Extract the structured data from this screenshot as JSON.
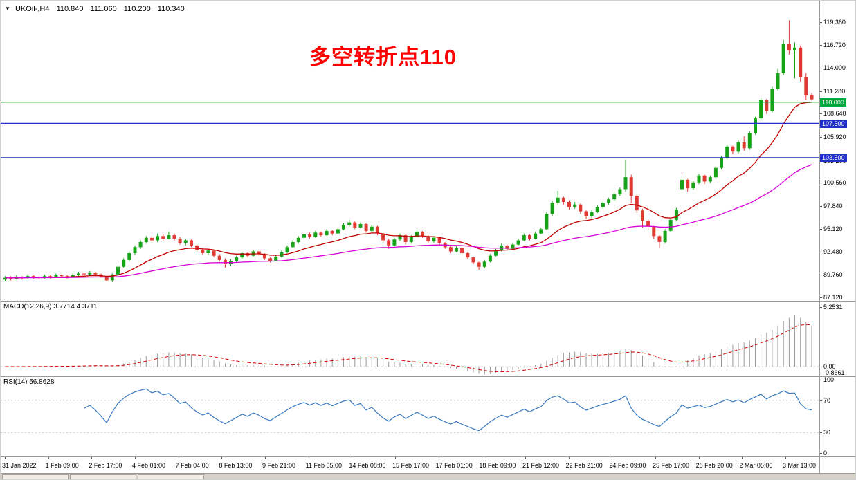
{
  "header": {
    "marker": "▼",
    "symbol_timeframe": "UKOil-,H4",
    "ohlc": {
      "open": "110.840",
      "high": "111.060",
      "low": "110.200",
      "close": "110.340"
    }
  },
  "annotation": {
    "text": "多空转折点110",
    "color": "#ff0000"
  },
  "hlines": [
    {
      "price": 110.0,
      "label": "110.000",
      "color": "#00a63e"
    },
    {
      "price": 107.5,
      "label": "107.500",
      "color": "#2230c8"
    },
    {
      "price": 103.5,
      "label": "103.500",
      "color": "#2230c8"
    }
  ],
  "macd_panel": {
    "label": "MACD(12,26,9) 3.7714 4.3711",
    "params": "12,26,9",
    "macd_value": "3.7714",
    "signal_value": "4.3711",
    "axis_labels": [
      "5.2531",
      "0.00",
      "-0.8661"
    ]
  },
  "rsi_panel": {
    "label": "RSI(14) 56.8628",
    "value": "56.8628",
    "axis_labels": [
      "100",
      "70",
      "30",
      "0"
    ],
    "levels": [
      70,
      30
    ]
  },
  "chart_data": {
    "type": "candlestick",
    "symbol": "UKOil-",
    "timeframe": "H4",
    "title": "UKOil-,H4 with MACD(12,26,9) and RSI(14)",
    "y_ticks": [
      "119.360",
      "116.720",
      "114.000",
      "111.280",
      "108.640",
      "105.920",
      "103.200",
      "100.560",
      "97.840",
      "95.120",
      "92.480",
      "89.760",
      "87.120"
    ],
    "y_range": [
      86.7,
      121.9
    ],
    "x_labels": [
      "31 Jan 2022",
      "1 Feb 09:00",
      "2 Feb 17:00",
      "4 Feb 01:00",
      "7 Feb 04:00",
      "8 Feb 13:00",
      "9 Feb 21:00",
      "11 Feb 05:00",
      "14 Feb 08:00",
      "15 Feb 17:00",
      "17 Feb 01:00",
      "18 Feb 09:00",
      "21 Feb 12:00",
      "22 Feb 21:00",
      "24 Feb 09:00",
      "25 Feb 17:00",
      "28 Feb 20:00",
      "2 Mar 05:00",
      "3 Mar 13:00"
    ],
    "horizontal_lines": [
      110.0,
      107.5,
      103.5
    ],
    "indicators": {
      "ma_fast_period": 16,
      "ma_slow_period": 58,
      "macd": [
        12,
        26,
        9
      ],
      "rsi_period": 14
    },
    "colors": {
      "up": "#17a317",
      "down": "#e03a34",
      "ma_fast": "#c00000",
      "ma_slow": "#d400d4",
      "macd_hist": "#9a9a9a",
      "macd_signal": "#d00000",
      "rsi": "#3878c0",
      "level_dotted": "#bdbdbd"
    },
    "candles": [
      [
        89.2,
        89.6,
        89.0,
        89.4
      ],
      [
        89.4,
        89.6,
        89.1,
        89.3
      ],
      [
        89.3,
        89.7,
        89.2,
        89.5
      ],
      [
        89.5,
        89.6,
        89.2,
        89.4
      ],
      [
        89.4,
        89.8,
        89.3,
        89.6
      ],
      [
        89.6,
        89.7,
        89.3,
        89.5
      ],
      [
        89.5,
        89.6,
        89.2,
        89.4
      ],
      [
        89.4,
        89.8,
        89.3,
        89.6
      ],
      [
        89.6,
        89.7,
        89.3,
        89.5
      ],
      [
        89.5,
        89.9,
        89.4,
        89.7
      ],
      [
        89.7,
        89.8,
        89.4,
        89.6
      ],
      [
        89.6,
        89.7,
        89.3,
        89.5
      ],
      [
        89.5,
        89.9,
        89.4,
        89.7
      ],
      [
        89.7,
        90.1,
        89.6,
        89.9
      ],
      [
        89.9,
        90.0,
        89.6,
        89.8
      ],
      [
        89.8,
        90.2,
        89.7,
        90.0
      ],
      [
        90.0,
        90.1,
        89.6,
        89.8
      ],
      [
        89.8,
        89.9,
        89.4,
        89.5
      ],
      [
        89.5,
        89.6,
        89.0,
        89.1
      ],
      [
        89.1,
        89.9,
        88.9,
        89.8
      ],
      [
        89.8,
        90.9,
        89.7,
        90.7
      ],
      [
        90.7,
        91.7,
        90.6,
        91.5
      ],
      [
        91.5,
        92.5,
        91.3,
        92.3
      ],
      [
        92.3,
        93.2,
        92.1,
        93.0
      ],
      [
        93.0,
        93.8,
        92.8,
        93.6
      ],
      [
        93.6,
        94.3,
        93.4,
        94.1
      ],
      [
        94.1,
        94.3,
        93.5,
        93.8
      ],
      [
        93.8,
        94.6,
        93.6,
        94.3
      ],
      [
        94.3,
        94.5,
        93.7,
        94.0
      ],
      [
        94.0,
        94.8,
        93.9,
        94.4
      ],
      [
        94.4,
        94.6,
        93.8,
        94.0
      ],
      [
        94.0,
        94.2,
        93.3,
        93.5
      ],
      [
        93.5,
        94.0,
        93.2,
        93.8
      ],
      [
        93.8,
        93.9,
        93.0,
        93.2
      ],
      [
        93.2,
        93.4,
        92.5,
        92.7
      ],
      [
        92.7,
        92.9,
        92.1,
        92.3
      ],
      [
        92.3,
        92.8,
        92.1,
        92.6
      ],
      [
        92.6,
        92.7,
        91.8,
        92.0
      ],
      [
        92.0,
        92.2,
        91.3,
        91.5
      ],
      [
        91.5,
        91.7,
        90.6,
        91.0
      ],
      [
        91.0,
        91.6,
        90.8,
        91.4
      ],
      [
        91.4,
        92.0,
        91.2,
        91.8
      ],
      [
        91.8,
        92.5,
        91.6,
        92.3
      ],
      [
        92.3,
        92.4,
        91.8,
        92.0
      ],
      [
        92.0,
        92.7,
        91.9,
        92.5
      ],
      [
        92.5,
        92.6,
        92.0,
        92.2
      ],
      [
        92.2,
        92.3,
        91.5,
        91.7
      ],
      [
        91.7,
        91.8,
        91.2,
        91.4
      ],
      [
        91.4,
        92.1,
        91.3,
        91.9
      ],
      [
        91.9,
        92.6,
        91.8,
        92.4
      ],
      [
        92.4,
        93.2,
        92.3,
        93.0
      ],
      [
        93.0,
        93.8,
        92.9,
        93.6
      ],
      [
        93.6,
        94.3,
        93.4,
        94.1
      ],
      [
        94.1,
        94.7,
        93.9,
        94.5
      ],
      [
        94.5,
        94.7,
        94.0,
        94.2
      ],
      [
        94.2,
        94.9,
        94.1,
        94.7
      ],
      [
        94.7,
        94.8,
        94.2,
        94.4
      ],
      [
        94.4,
        95.1,
        94.3,
        94.9
      ],
      [
        94.9,
        95.0,
        94.4,
        94.6
      ],
      [
        94.6,
        95.3,
        94.5,
        95.1
      ],
      [
        95.1,
        95.8,
        95.0,
        95.6
      ],
      [
        95.6,
        96.2,
        95.4,
        95.9
      ],
      [
        95.9,
        96.0,
        95.1,
        95.3
      ],
      [
        95.3,
        95.9,
        95.2,
        95.7
      ],
      [
        95.7,
        95.8,
        94.7,
        94.9
      ],
      [
        94.9,
        95.6,
        94.8,
        95.4
      ],
      [
        95.4,
        95.5,
        94.4,
        94.6
      ],
      [
        94.6,
        94.7,
        93.5,
        93.8
      ],
      [
        93.8,
        94.0,
        92.8,
        93.2
      ],
      [
        93.2,
        94.1,
        93.1,
        93.9
      ],
      [
        93.9,
        94.6,
        93.7,
        94.4
      ],
      [
        94.4,
        94.5,
        93.3,
        93.6
      ],
      [
        93.6,
        94.4,
        93.4,
        94.2
      ],
      [
        94.2,
        95.0,
        94.1,
        94.8
      ],
      [
        94.8,
        94.9,
        94.1,
        94.3
      ],
      [
        94.3,
        94.4,
        93.5,
        93.7
      ],
      [
        93.7,
        94.3,
        93.5,
        94.1
      ],
      [
        94.1,
        94.2,
        93.3,
        93.5
      ],
      [
        93.5,
        93.6,
        92.8,
        93.0
      ],
      [
        93.0,
        93.1,
        92.3,
        92.5
      ],
      [
        92.5,
        93.1,
        92.4,
        92.9
      ],
      [
        92.9,
        93.0,
        92.1,
        92.3
      ],
      [
        92.3,
        92.4,
        91.6,
        91.8
      ],
      [
        91.8,
        91.9,
        91.0,
        91.2
      ],
      [
        91.2,
        91.3,
        90.3,
        90.7
      ],
      [
        90.7,
        91.5,
        90.5,
        91.3
      ],
      [
        91.3,
        92.2,
        91.2,
        92.0
      ],
      [
        92.0,
        92.8,
        91.9,
        92.6
      ],
      [
        92.6,
        93.4,
        92.5,
        93.2
      ],
      [
        93.2,
        93.3,
        92.6,
        92.8
      ],
      [
        92.8,
        93.5,
        92.7,
        93.3
      ],
      [
        93.3,
        94.0,
        93.2,
        93.8
      ],
      [
        93.8,
        94.6,
        93.7,
        94.4
      ],
      [
        94.4,
        94.5,
        93.8,
        94.0
      ],
      [
        94.0,
        94.8,
        93.9,
        94.6
      ],
      [
        94.6,
        95.3,
        94.5,
        95.1
      ],
      [
        95.1,
        97.1,
        95.0,
        96.9
      ],
      [
        96.9,
        98.4,
        96.7,
        98.2
      ],
      [
        98.2,
        99.6,
        98.0,
        98.8
      ],
      [
        98.8,
        98.9,
        98.0,
        98.3
      ],
      [
        98.3,
        98.5,
        97.4,
        97.7
      ],
      [
        97.7,
        98.3,
        97.5,
        98.0
      ],
      [
        98.0,
        98.1,
        96.9,
        97.2
      ],
      [
        97.2,
        97.3,
        96.3,
        96.6
      ],
      [
        96.6,
        97.3,
        96.4,
        97.1
      ],
      [
        97.1,
        97.9,
        97.0,
        97.7
      ],
      [
        97.7,
        98.4,
        97.5,
        98.2
      ],
      [
        98.2,
        98.8,
        98.0,
        98.6
      ],
      [
        98.6,
        99.4,
        98.4,
        99.2
      ],
      [
        99.2,
        100.0,
        99.0,
        99.8
      ],
      [
        99.8,
        103.2,
        99.5,
        101.2
      ],
      [
        101.2,
        101.5,
        98.2,
        99.0
      ],
      [
        99.0,
        99.2,
        97.0,
        97.3
      ],
      [
        97.3,
        97.5,
        95.3,
        96.1
      ],
      [
        96.1,
        96.3,
        95.0,
        95.4
      ],
      [
        95.4,
        95.5,
        94.0,
        94.3
      ],
      [
        94.3,
        94.4,
        92.9,
        93.6
      ],
      [
        93.6,
        95.1,
        93.4,
        94.9
      ],
      [
        94.9,
        96.4,
        94.8,
        96.2
      ],
      [
        96.2,
        97.6,
        96.0,
        97.4
      ],
      [
        99.8,
        101.8,
        99.6,
        100.9
      ],
      [
        100.9,
        101.0,
        99.5,
        99.9
      ],
      [
        99.9,
        100.8,
        99.7,
        100.6
      ],
      [
        100.6,
        101.6,
        100.4,
        101.4
      ],
      [
        101.4,
        101.5,
        100.4,
        100.7
      ],
      [
        100.7,
        101.4,
        100.5,
        101.2
      ],
      [
        101.2,
        102.5,
        101.0,
        102.3
      ],
      [
        102.3,
        103.7,
        102.1,
        103.5
      ],
      [
        103.5,
        105.0,
        103.3,
        104.8
      ],
      [
        104.8,
        104.9,
        103.9,
        104.2
      ],
      [
        104.2,
        105.5,
        104.0,
        105.3
      ],
      [
        105.3,
        106.0,
        104.3,
        104.6
      ],
      [
        104.6,
        106.6,
        104.4,
        106.4
      ],
      [
        106.4,
        108.3,
        106.2,
        108.1
      ],
      [
        108.1,
        110.5,
        107.9,
        110.3
      ],
      [
        110.3,
        110.4,
        108.6,
        109.0
      ],
      [
        109.0,
        111.8,
        108.8,
        111.6
      ],
      [
        111.6,
        113.9,
        111.4,
        113.4
      ],
      [
        113.4,
        117.3,
        113.2,
        116.8
      ],
      [
        116.8,
        119.6,
        115.6,
        116.1
      ],
      [
        116.1,
        117.0,
        112.8,
        116.4
      ],
      [
        116.4,
        116.6,
        112.4,
        112.9
      ],
      [
        112.9,
        113.4,
        110.3,
        110.8
      ],
      [
        110.84,
        111.06,
        110.2,
        110.34
      ]
    ]
  }
}
